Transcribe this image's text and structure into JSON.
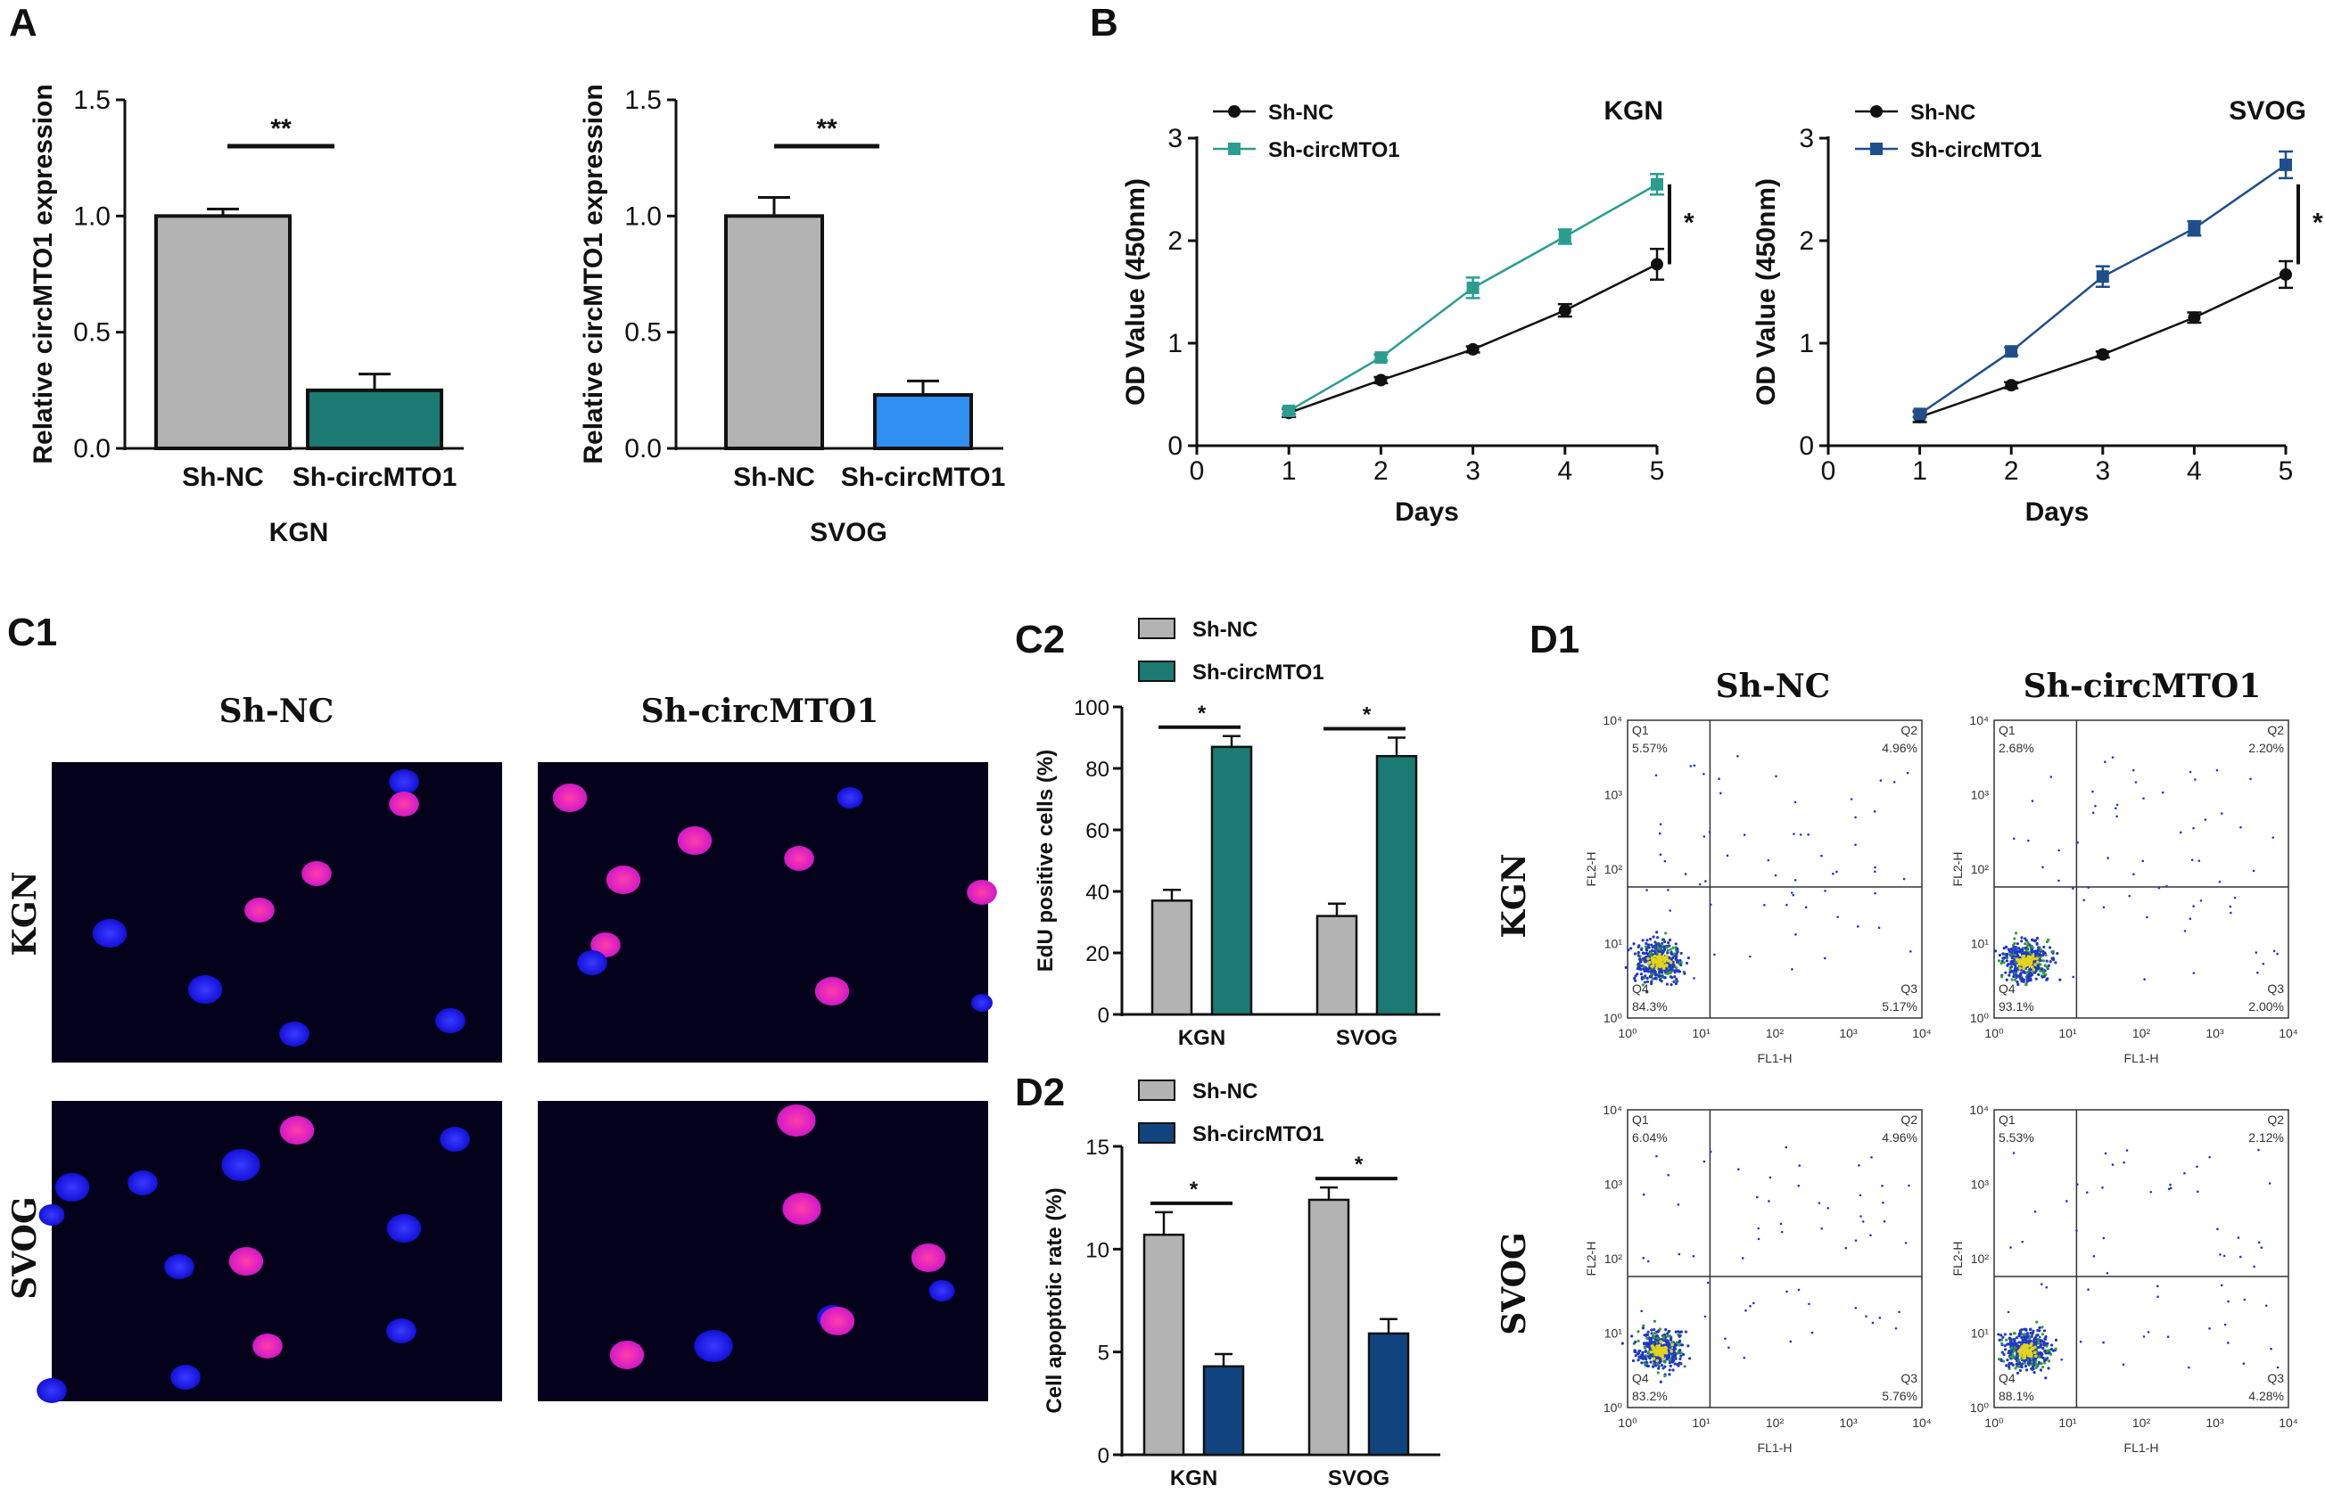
{
  "colors": {
    "gray": "#b3b3b3",
    "kgn_teal": "#1b7a72",
    "svog_blue": "#2e8ef2",
    "line_teal": "#2a9d8f",
    "line_navy": "#1f4e8c",
    "bar_navy": "#11447f",
    "black": "#111111"
  },
  "panel_labels": {
    "a": "A",
    "b": "B",
    "c1": "C1",
    "c2": "C2",
    "d1": "D1",
    "d2": "D2"
  },
  "micro": {
    "col1": "Sh-NC",
    "col2": "Sh-circMTO1",
    "row1": "KGN",
    "row2": "SVOG"
  },
  "flow": {
    "col1": "Sh-NC",
    "col2": "Sh-circMTO1",
    "row1": "KGN",
    "row2": "SVOG",
    "xlabel": "FL1-H",
    "ylabel": "FL2-H",
    "quad_names": {
      "q1": "Q1",
      "q2": "Q2",
      "q3": "Q3",
      "q4": "Q4"
    },
    "xticks": [
      "10⁰",
      "10¹",
      "10²",
      "10³",
      "10⁴"
    ],
    "yticks": [
      "10⁰",
      "10¹",
      "10²",
      "10³",
      "10⁴"
    ],
    "plots": [
      {
        "q1": "5.57%",
        "q2": "4.96%",
        "q3": "5.17%",
        "q4": "84.3%"
      },
      {
        "q1": "2.68%",
        "q2": "2.20%",
        "q3": "2.00%",
        "q4": "93.1%"
      },
      {
        "q1": "6.04%",
        "q2": "4.96%",
        "q3": "5.76%",
        "q4": "83.2%"
      },
      {
        "q1": "5.53%",
        "q2": "2.12%",
        "q3": "4.28%",
        "q4": "88.1%"
      }
    ]
  },
  "chart_data": [
    {
      "id": "A1",
      "type": "bar",
      "categories": [
        "Sh-NC",
        "Sh-circMTO1"
      ],
      "values": [
        1.0,
        0.25
      ],
      "errors": [
        0.03,
        0.07
      ],
      "title": "KGN",
      "ylabel": "Relative  circMTO1 expression",
      "ylim": [
        0,
        1.5
      ],
      "yticks": [
        "0.0",
        "0.5",
        "1.0",
        "1.5"
      ],
      "significance": "**"
    },
    {
      "id": "A2",
      "type": "bar",
      "categories": [
        "Sh-NC",
        "Sh-circMTO1"
      ],
      "values": [
        1.0,
        0.23
      ],
      "errors": [
        0.08,
        0.06
      ],
      "title": "SVOG",
      "ylabel": "Relative  circMTO1 expression",
      "ylim": [
        0,
        1.5
      ],
      "yticks": [
        "0.0",
        "0.5",
        "1.0",
        "1.5"
      ],
      "significance": "**"
    },
    {
      "id": "B1",
      "type": "line",
      "title": "KGN",
      "x": [
        1,
        2,
        3,
        4,
        5
      ],
      "xticks": [
        "0",
        "1",
        "2",
        "3",
        "4",
        "5"
      ],
      "yticks": [
        "0",
        "1",
        "2",
        "3"
      ],
      "xlabel": "Days",
      "ylabel": "OD Value (450nm)",
      "xlim": [
        0,
        5
      ],
      "ylim": [
        0,
        3
      ],
      "series": [
        {
          "name": "Sh-NC",
          "values": [
            0.32,
            0.64,
            0.94,
            1.32,
            1.77
          ],
          "errors": [
            0.04,
            0.03,
            0.03,
            0.06,
            0.15
          ]
        },
        {
          "name": "Sh-circMTO1",
          "values": [
            0.34,
            0.86,
            1.54,
            2.04,
            2.55
          ],
          "errors": [
            0.03,
            0.03,
            0.1,
            0.07,
            0.1
          ]
        }
      ],
      "significance": "*"
    },
    {
      "id": "B2",
      "type": "line",
      "title": "SVOG",
      "x": [
        1,
        2,
        3,
        4,
        5
      ],
      "xticks": [
        "0",
        "1",
        "2",
        "3",
        "4",
        "5"
      ],
      "yticks": [
        "0",
        "1",
        "2",
        "3"
      ],
      "xlabel": "Days",
      "ylabel": "OD Value (450nm)",
      "xlim": [
        0,
        5
      ],
      "ylim": [
        0,
        3
      ],
      "series": [
        {
          "name": "Sh-NC",
          "values": [
            0.28,
            0.59,
            0.89,
            1.25,
            1.67
          ],
          "errors": [
            0.05,
            0.03,
            0.03,
            0.05,
            0.13
          ]
        },
        {
          "name": "Sh-circMTO1",
          "values": [
            0.31,
            0.92,
            1.65,
            2.12,
            2.74
          ],
          "errors": [
            0.03,
            0.04,
            0.1,
            0.07,
            0.13
          ]
        }
      ],
      "significance": "*"
    },
    {
      "id": "C2",
      "type": "bar",
      "categories": [
        "KGN",
        "SVOG"
      ],
      "series": [
        {
          "name": "Sh-NC",
          "values": [
            37,
            32
          ],
          "errors": [
            3.5,
            4
          ]
        },
        {
          "name": "Sh-circMTO1",
          "values": [
            87,
            84
          ],
          "errors": [
            3.5,
            6
          ]
        }
      ],
      "ylabel": "EdU positive cells (%)",
      "ylim": [
        0,
        100
      ],
      "yticks": [
        "0",
        "20",
        "40",
        "60",
        "80",
        "100"
      ],
      "significance": [
        "*",
        "*"
      ]
    },
    {
      "id": "D2",
      "type": "bar",
      "categories": [
        "KGN",
        "SVOG"
      ],
      "series": [
        {
          "name": "Sh-NC",
          "values": [
            10.7,
            12.4
          ],
          "errors": [
            1.1,
            0.6
          ]
        },
        {
          "name": "Sh-circMTO1",
          "values": [
            4.3,
            5.9
          ],
          "errors": [
            0.6,
            0.7
          ]
        }
      ],
      "ylabel": "Cell apoptotic rate (%)",
      "ylim": [
        0,
        15
      ],
      "yticks": [
        "0",
        "5",
        "10",
        "15"
      ],
      "significance": [
        "*",
        "*"
      ]
    }
  ]
}
